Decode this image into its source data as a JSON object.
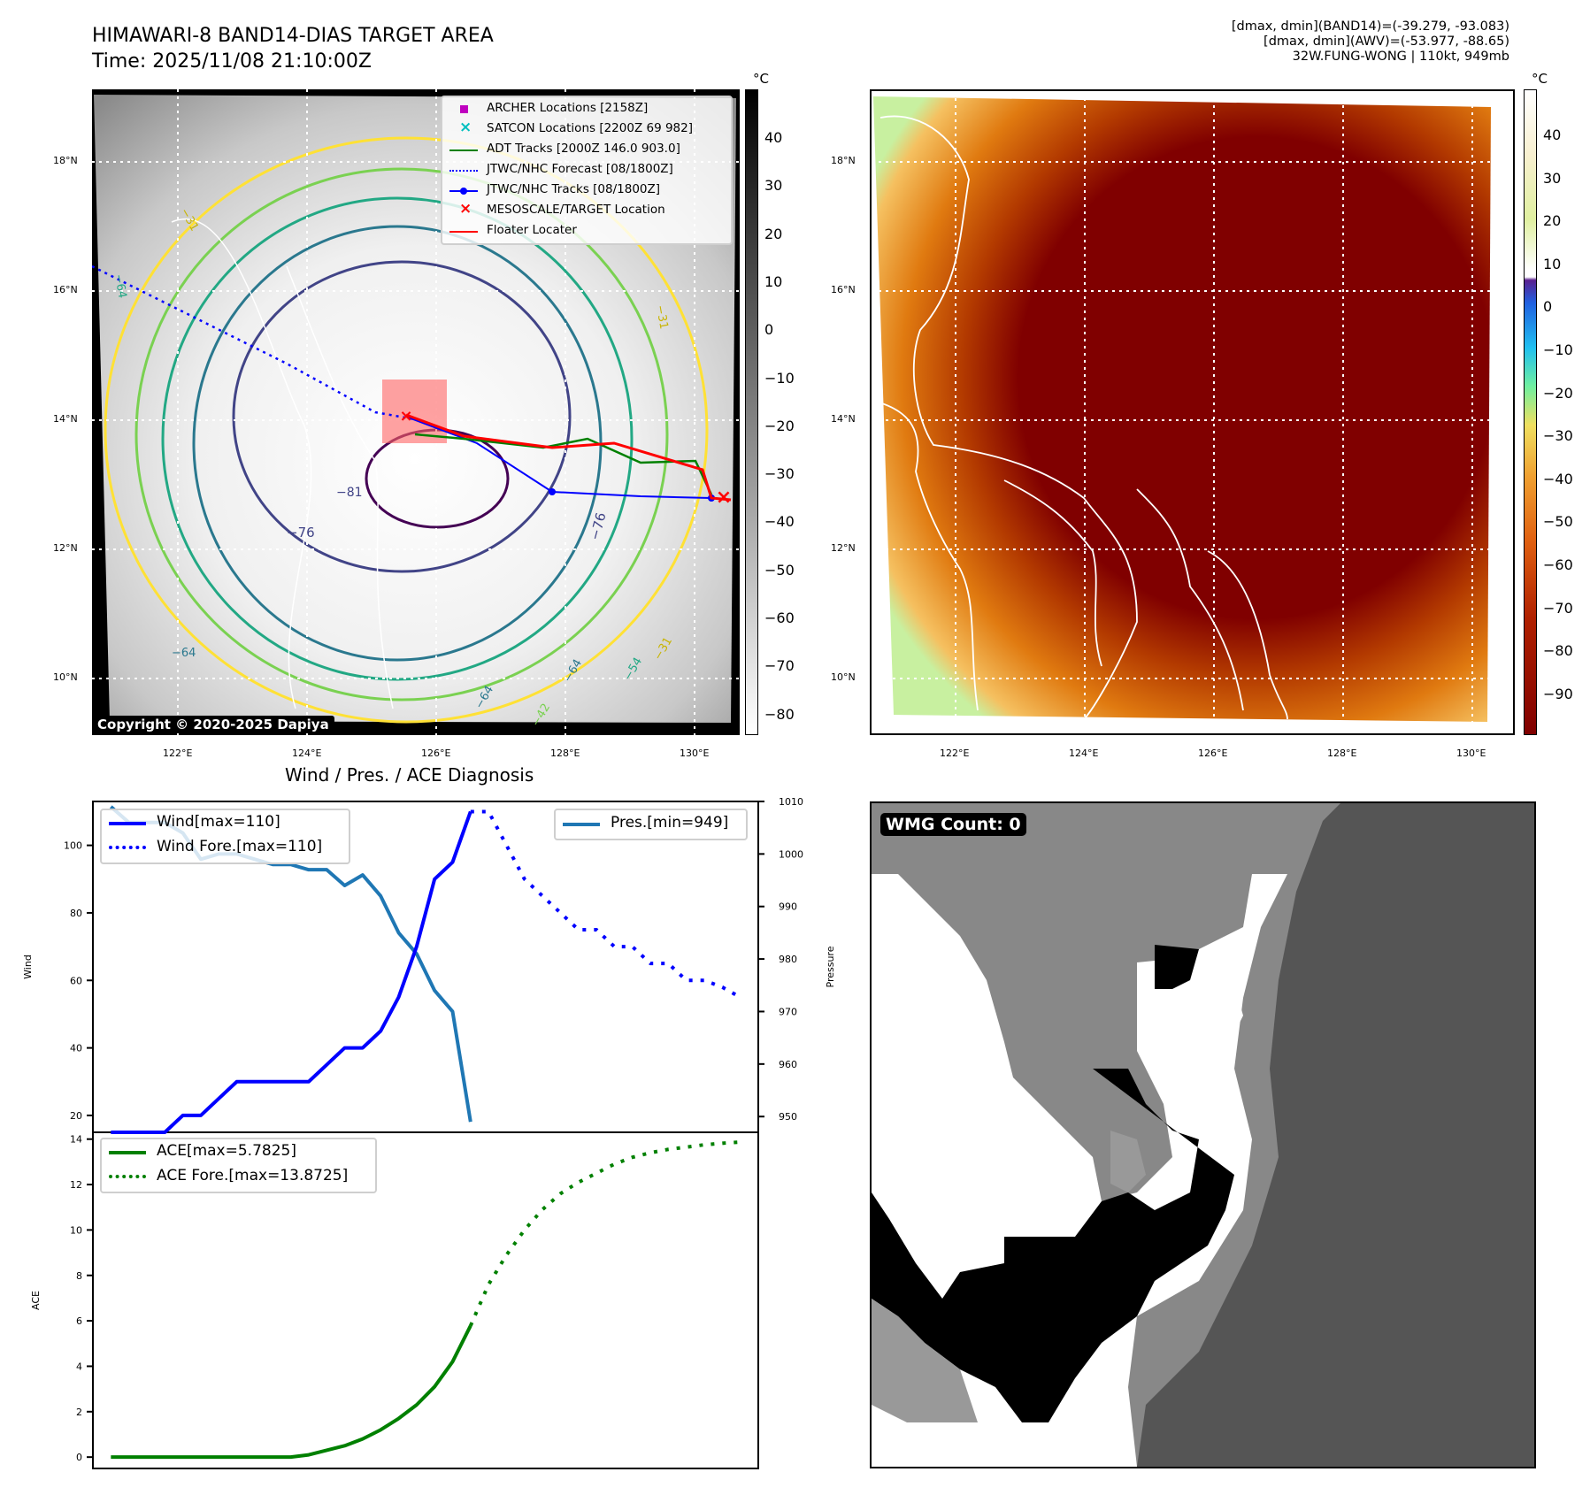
{
  "header": {
    "title": "HIMAWARI-8 BAND14-DIAS TARGET AREA",
    "time": "Time: 2025/11/08 21:10:00Z",
    "info_lines": [
      "[dmax, dmin](BAND14)=(-39.279, -93.083)",
      "[dmax, dmin](AWV)=(-53.977, -88.65)",
      "32W.FUNG-WONG | 110kt, 949mb"
    ]
  },
  "colors": {
    "wind": "#0000ff",
    "pressure": "#1f77b4",
    "ace": "#008000",
    "archer": "#bf00bf",
    "satcon": "#00bfbf",
    "adt": "#008000",
    "jtwc": "#0000ff",
    "target": "#ff0000",
    "floater": "#ff0000"
  },
  "map_ir": {
    "unit": "°C",
    "lat_ticks": [
      "18°N",
      "16°N",
      "14°N",
      "12°N",
      "10°N"
    ],
    "lon_ticks": [
      "122°E",
      "124°E",
      "126°E",
      "128°E",
      "130°E"
    ],
    "colorbar_ticks": [
      "40",
      "30",
      "20",
      "10",
      "0",
      "−10",
      "−20",
      "−30",
      "−40",
      "−50",
      "−60",
      "−70",
      "−80"
    ],
    "contour_labels": [
      "−31",
      "−31",
      "−64",
      "−64",
      "−64",
      "−54",
      "−42",
      "−76",
      "−76",
      "−81",
      "−31",
      "−64"
    ],
    "copyright": "Copyright © 2020-2025 Dapiya",
    "legend": [
      {
        "label": "ARCHER Locations [2158Z]",
        "icon": "square-marker"
      },
      {
        "label": "SATCON Locations [2200Z 69 982]",
        "icon": "x-marker"
      },
      {
        "label": "ADT Tracks [2000Z 146.0 903.0]",
        "icon": "solid-line"
      },
      {
        "label": "JTWC/NHC Forecast [08/1800Z]",
        "icon": "dotted-line"
      },
      {
        "label": "JTWC/NHC Tracks [08/1800Z]",
        "icon": "line-dot"
      },
      {
        "label": "MESOSCALE/TARGET Location",
        "icon": "x-marker"
      },
      {
        "label": "Floater Locater",
        "icon": "solid-line"
      }
    ]
  },
  "map_awv": {
    "unit": "°C",
    "lat_ticks": [
      "18°N",
      "16°N",
      "14°N",
      "12°N",
      "10°N"
    ],
    "lon_ticks": [
      "122°E",
      "124°E",
      "126°E",
      "128°E",
      "130°E"
    ],
    "colorbar_ticks": [
      "40",
      "30",
      "20",
      "10",
      "0",
      "−10",
      "−20",
      "−30",
      "−40",
      "−50",
      "−60",
      "−70",
      "−80",
      "−90"
    ]
  },
  "wmg": {
    "label": "WMG Count: 0"
  },
  "chart_data": [
    {
      "type": "line",
      "title": "Wind / Pres. / ACE Diagnosis",
      "ylabel": "Wind",
      "ylabel_right": "Pressure",
      "ylim": [
        15,
        113
      ],
      "ylim_right": [
        947,
        1010
      ],
      "y_ticks": [
        "100",
        "80",
        "60",
        "40",
        "20"
      ],
      "y_ticks_right": [
        "1010",
        "1000",
        "990",
        "980",
        "970",
        "960",
        "950"
      ],
      "x": [
        0,
        1,
        2,
        3,
        4,
        5,
        6,
        7,
        8,
        9,
        10,
        11,
        12,
        13,
        14,
        15,
        16,
        17,
        18,
        19,
        20,
        21,
        22,
        23,
        24,
        25,
        26,
        27,
        28,
        29,
        30,
        31,
        32,
        33,
        34,
        35
      ],
      "series": [
        {
          "name": "Wind[max=110]",
          "style": "solid",
          "axis": "left",
          "x": [
            0,
            1,
            2,
            3,
            4,
            5,
            6,
            7,
            8,
            9,
            10,
            11,
            12,
            13,
            14,
            15,
            16,
            17,
            18,
            19,
            20
          ],
          "values": [
            15,
            15,
            15,
            15,
            20,
            20,
            25,
            30,
            30,
            30,
            30,
            30,
            35,
            40,
            40,
            45,
            55,
            70,
            90,
            95,
            110
          ]
        },
        {
          "name": "Wind Fore.[max=110]",
          "style": "dotted",
          "axis": "left",
          "x": [
            20,
            21,
            22,
            23,
            24,
            25,
            26,
            27,
            28,
            29,
            30,
            31,
            32,
            33,
            34,
            35
          ],
          "values": [
            110,
            110,
            100,
            90,
            85,
            80,
            75,
            75,
            70,
            70,
            65,
            65,
            60,
            60,
            58,
            55
          ]
        },
        {
          "name": "Pres.[min=949]",
          "style": "solid",
          "axis": "right",
          "x": [
            0,
            1,
            2,
            3,
            4,
            5,
            6,
            7,
            8,
            9,
            10,
            11,
            12,
            13,
            14,
            15,
            16,
            17,
            18,
            19,
            20
          ],
          "values": [
            1009,
            1006,
            1006,
            1006,
            1004,
            999,
            1000,
            1000,
            999,
            998,
            998,
            997,
            997,
            994,
            996,
            992,
            985,
            981,
            974,
            970,
            949
          ]
        }
      ]
    },
    {
      "type": "line",
      "ylabel": "ACE",
      "ylim": [
        -0.5,
        14.3
      ],
      "y_ticks": [
        "14",
        "12",
        "10",
        "8",
        "6",
        "4",
        "2",
        "0"
      ],
      "series": [
        {
          "name": "ACE[max=5.7825]",
          "style": "solid",
          "x": [
            0,
            1,
            2,
            3,
            4,
            5,
            6,
            7,
            8,
            9,
            10,
            11,
            12,
            13,
            14,
            15,
            16,
            17,
            18,
            19,
            20
          ],
          "values": [
            0,
            0,
            0,
            0,
            0,
            0,
            0,
            0,
            0,
            0,
            0,
            0.1,
            0.3,
            0.5,
            0.8,
            1.2,
            1.7,
            2.3,
            3.1,
            4.2,
            5.7825
          ]
        },
        {
          "name": "ACE Fore.[max=13.8725]",
          "style": "dotted",
          "x": [
            20,
            21,
            22,
            23,
            24,
            25,
            26,
            27,
            28,
            29,
            30,
            31,
            32,
            33,
            34,
            35
          ],
          "values": [
            5.7825,
            7.6,
            8.9,
            10.0,
            10.9,
            11.6,
            12.1,
            12.5,
            12.9,
            13.2,
            13.4,
            13.55,
            13.65,
            13.75,
            13.82,
            13.8725
          ]
        }
      ]
    }
  ]
}
